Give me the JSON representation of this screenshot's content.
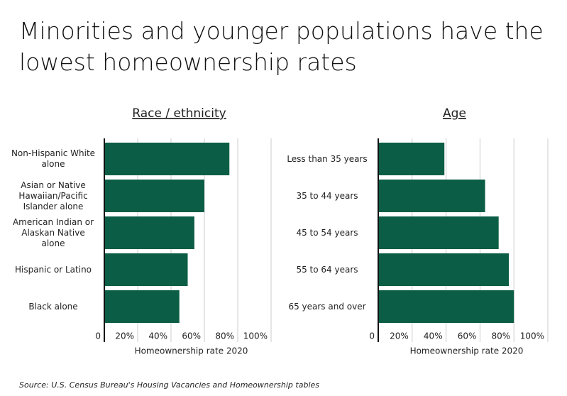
{
  "title": "Minorities and younger populations have the lowest homeownership rates",
  "source": "Source:  U.S. Census Bureau's Housing Vacancies and Homeownership tables",
  "chart_data": [
    {
      "type": "bar",
      "orientation": "horizontal",
      "subtitle": "Race / ethnicity",
      "categories": [
        "Non-Hispanic White alone",
        "Asian or Native Hawaiian/Pacific Islander alone",
        "American Indian or Alaskan Native alone",
        "Hispanic or Latino",
        "Black alone"
      ],
      "values": [
        75,
        60,
        54,
        50,
        45
      ],
      "color": "#0b5e45",
      "xlim": [
        0,
        100
      ],
      "xticks": [
        0,
        {
          "value": 20,
          "label": "20%"
        },
        {
          "value": 40,
          "label": "40%"
        },
        {
          "value": 60,
          "label": "60%"
        },
        {
          "value": 80,
          "label": "80%"
        },
        {
          "value": 100,
          "label": "100%"
        }
      ],
      "xlabel": "Homeownership rate 2020",
      "grid": true
    },
    {
      "type": "bar",
      "orientation": "horizontal",
      "subtitle": "Age",
      "categories": [
        "Less than 35 years",
        "35 to 44 years",
        "45 to 54 years",
        "55 to 64 years",
        "65 years and over"
      ],
      "values": [
        39,
        63,
        71,
        77,
        80
      ],
      "color": "#0b5e45",
      "xlim": [
        0,
        100
      ],
      "xticks": [
        0,
        {
          "value": 20,
          "label": "20%"
        },
        {
          "value": 40,
          "label": "40%"
        },
        {
          "value": 60,
          "label": "60%"
        },
        {
          "value": 80,
          "label": "80%"
        },
        {
          "value": 100,
          "label": "100%"
        }
      ],
      "xlabel": "Homeownership rate 2020",
      "grid": true
    }
  ]
}
